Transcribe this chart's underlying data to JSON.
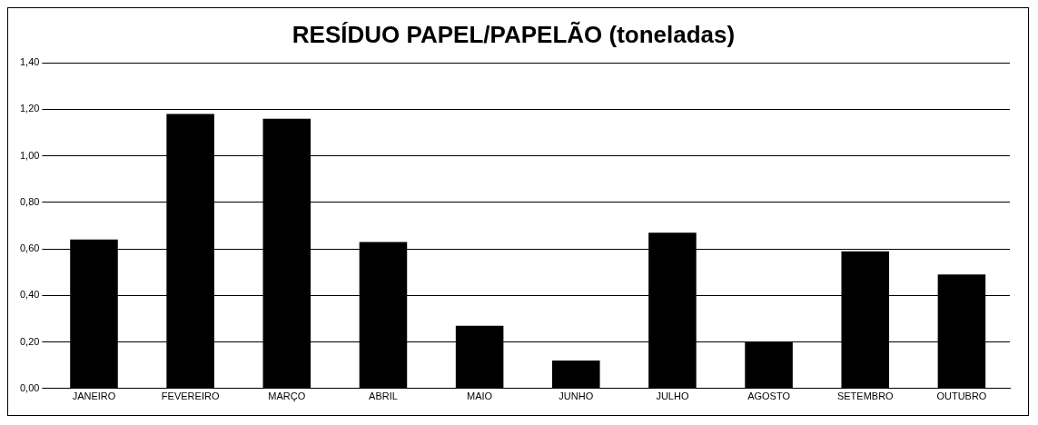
{
  "chart_data": {
    "type": "bar",
    "title": "RESÍDUO PAPEL/PAPELÃO (toneladas)",
    "categories": [
      "JANEIRO",
      "FEVEREIRO",
      "MARÇO",
      "ABRIL",
      "MAIO",
      "JUNHO",
      "JULHO",
      "AGOSTO",
      "SETEMBRO",
      "OUTUBRO"
    ],
    "values": [
      0.64,
      1.18,
      1.16,
      0.63,
      0.27,
      0.12,
      0.67,
      0.2,
      0.59,
      0.49
    ],
    "color": "#000000",
    "ylim": [
      0,
      1.4
    ],
    "yticks": [
      {
        "value": 0,
        "label": "0,00"
      },
      {
        "value": 0.2,
        "label": "0,20"
      },
      {
        "value": 0.4,
        "label": "0,40"
      },
      {
        "value": 0.6,
        "label": "0,60"
      },
      {
        "value": 0.8,
        "label": "0,80"
      },
      {
        "value": 1,
        "label": "1,00"
      },
      {
        "value": 1.2,
        "label": "1,20"
      },
      {
        "value": 1.4,
        "label": "1,40"
      }
    ],
    "grid": "y"
  }
}
